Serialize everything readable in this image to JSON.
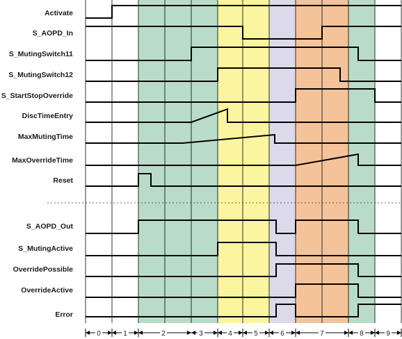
{
  "signals": [
    {
      "name": "Activate"
    },
    {
      "name": "S_AOPD_In"
    },
    {
      "name": "S_MutingSwitch11"
    },
    {
      "name": "S_MutingSwitch12"
    },
    {
      "name": "S_StartStopOverride"
    },
    {
      "name": "DiscTimeEntry"
    },
    {
      "name": "MaxMutingTime"
    },
    {
      "name": "MaxOverrideTime"
    },
    {
      "name": "Reset"
    },
    {
      "name": "S_AOPD_Out"
    },
    {
      "name": "S_MutingActive"
    },
    {
      "name": "OverridePossible"
    },
    {
      "name": "OverrideActive"
    },
    {
      "name": "Error"
    }
  ],
  "steps": [
    {
      "label": "0"
    },
    {
      "label": "1"
    },
    {
      "label": "2"
    },
    {
      "label": "3"
    },
    {
      "label": "4"
    },
    {
      "label": "5"
    },
    {
      "label": "6"
    },
    {
      "label": "7"
    },
    {
      "label": "8"
    },
    {
      "label": "9"
    }
  ],
  "phase_colors": {
    "muting": "#b9dcc8",
    "yellow": "#fbf5a0",
    "lavender": "#dcd9ea",
    "override": "#f4c39a",
    "waveform": "#000000",
    "grid": "#000000"
  }
}
